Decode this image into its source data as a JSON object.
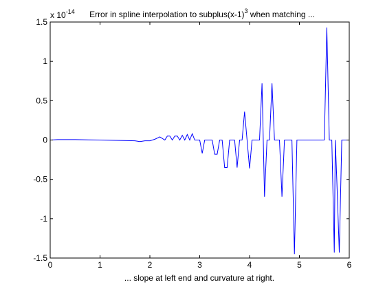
{
  "chart_data": {
    "type": "line",
    "title": {
      "main": "Error in spline interpolation to subplus(x-1)",
      "exponent": "3",
      "rest": " when matching  ..."
    },
    "xlabel": "... slope at left end and curvature at right.",
    "ylabel": "",
    "y_multiplier": {
      "base": "x 10",
      "exponent": "-14"
    },
    "xlim": [
      0,
      6
    ],
    "ylim": [
      -1.5,
      1.5
    ],
    "xticks": [
      0,
      1,
      2,
      3,
      4,
      5,
      6
    ],
    "xtick_labels": [
      "0",
      "1",
      "2",
      "3",
      "4",
      "5",
      "6"
    ],
    "yticks": [
      -1.5,
      -1,
      -0.5,
      0,
      0.5,
      1,
      1.5
    ],
    "ytick_labels": [
      "-1.5",
      "-1",
      "-0.5",
      "0",
      "0.5",
      "1",
      "1.5"
    ],
    "grid": false,
    "legend": "none",
    "line_color": "#0000ff",
    "series": [
      {
        "x": [
          0,
          0.15,
          0.5,
          1.0,
          1.4,
          1.7,
          1.8,
          1.9,
          2.0,
          2.1,
          2.2,
          2.3,
          2.35,
          2.4,
          2.45,
          2.5,
          2.55,
          2.6,
          2.65,
          2.7,
          2.75,
          2.8,
          2.85,
          2.9,
          2.95,
          3.0,
          3.05,
          3.1,
          3.15,
          3.2,
          3.25,
          3.3,
          3.35,
          3.4,
          3.45,
          3.5,
          3.55,
          3.6,
          3.65,
          3.7,
          3.75,
          3.8,
          3.85,
          3.9,
          3.95,
          4.0,
          4.05,
          4.1,
          4.15,
          4.2,
          4.25,
          4.3,
          4.35,
          4.4,
          4.45,
          4.5,
          4.55,
          4.6,
          4.65,
          4.7,
          4.75,
          4.8,
          4.85,
          4.9,
          4.95,
          5.0,
          5.05,
          5.1,
          5.15,
          5.2,
          5.25,
          5.3,
          5.35,
          5.4,
          5.45,
          5.5,
          5.55,
          5.6,
          5.65,
          5.7,
          5.72,
          5.75,
          5.8,
          5.85,
          5.9,
          5.95,
          6.0
        ],
        "y": [
          0,
          0.005,
          0.005,
          0,
          -0.005,
          -0.01,
          -0.02,
          -0.01,
          -0.01,
          0.01,
          0.04,
          0.0,
          0.05,
          0.05,
          0.0,
          0.05,
          0.05,
          0.0,
          0.06,
          0.0,
          0.07,
          0.0,
          0.08,
          0.0,
          0.0,
          0.0,
          -0.17,
          0.0,
          0.0,
          0.0,
          0.0,
          -0.18,
          -0.18,
          0.0,
          0.0,
          -0.35,
          -0.35,
          0.0,
          0.0,
          0.0,
          -0.35,
          0.0,
          0.0,
          0.36,
          0.0,
          -0.36,
          0.0,
          0.0,
          0.0,
          0.0,
          0.72,
          -0.72,
          0.0,
          0.0,
          0.72,
          0.0,
          0.0,
          0.0,
          -0.72,
          0.0,
          0.0,
          0.0,
          0.0,
          -1.45,
          0.0,
          0.0,
          0.0,
          0.0,
          0.0,
          0.0,
          0.0,
          0.0,
          0.0,
          0.0,
          0.0,
          0.0,
          1.43,
          0.0,
          0.0,
          -1.43,
          0.0,
          -0.5,
          -1.43,
          0.0,
          0.0,
          0.0,
          0.0
        ]
      }
    ]
  }
}
